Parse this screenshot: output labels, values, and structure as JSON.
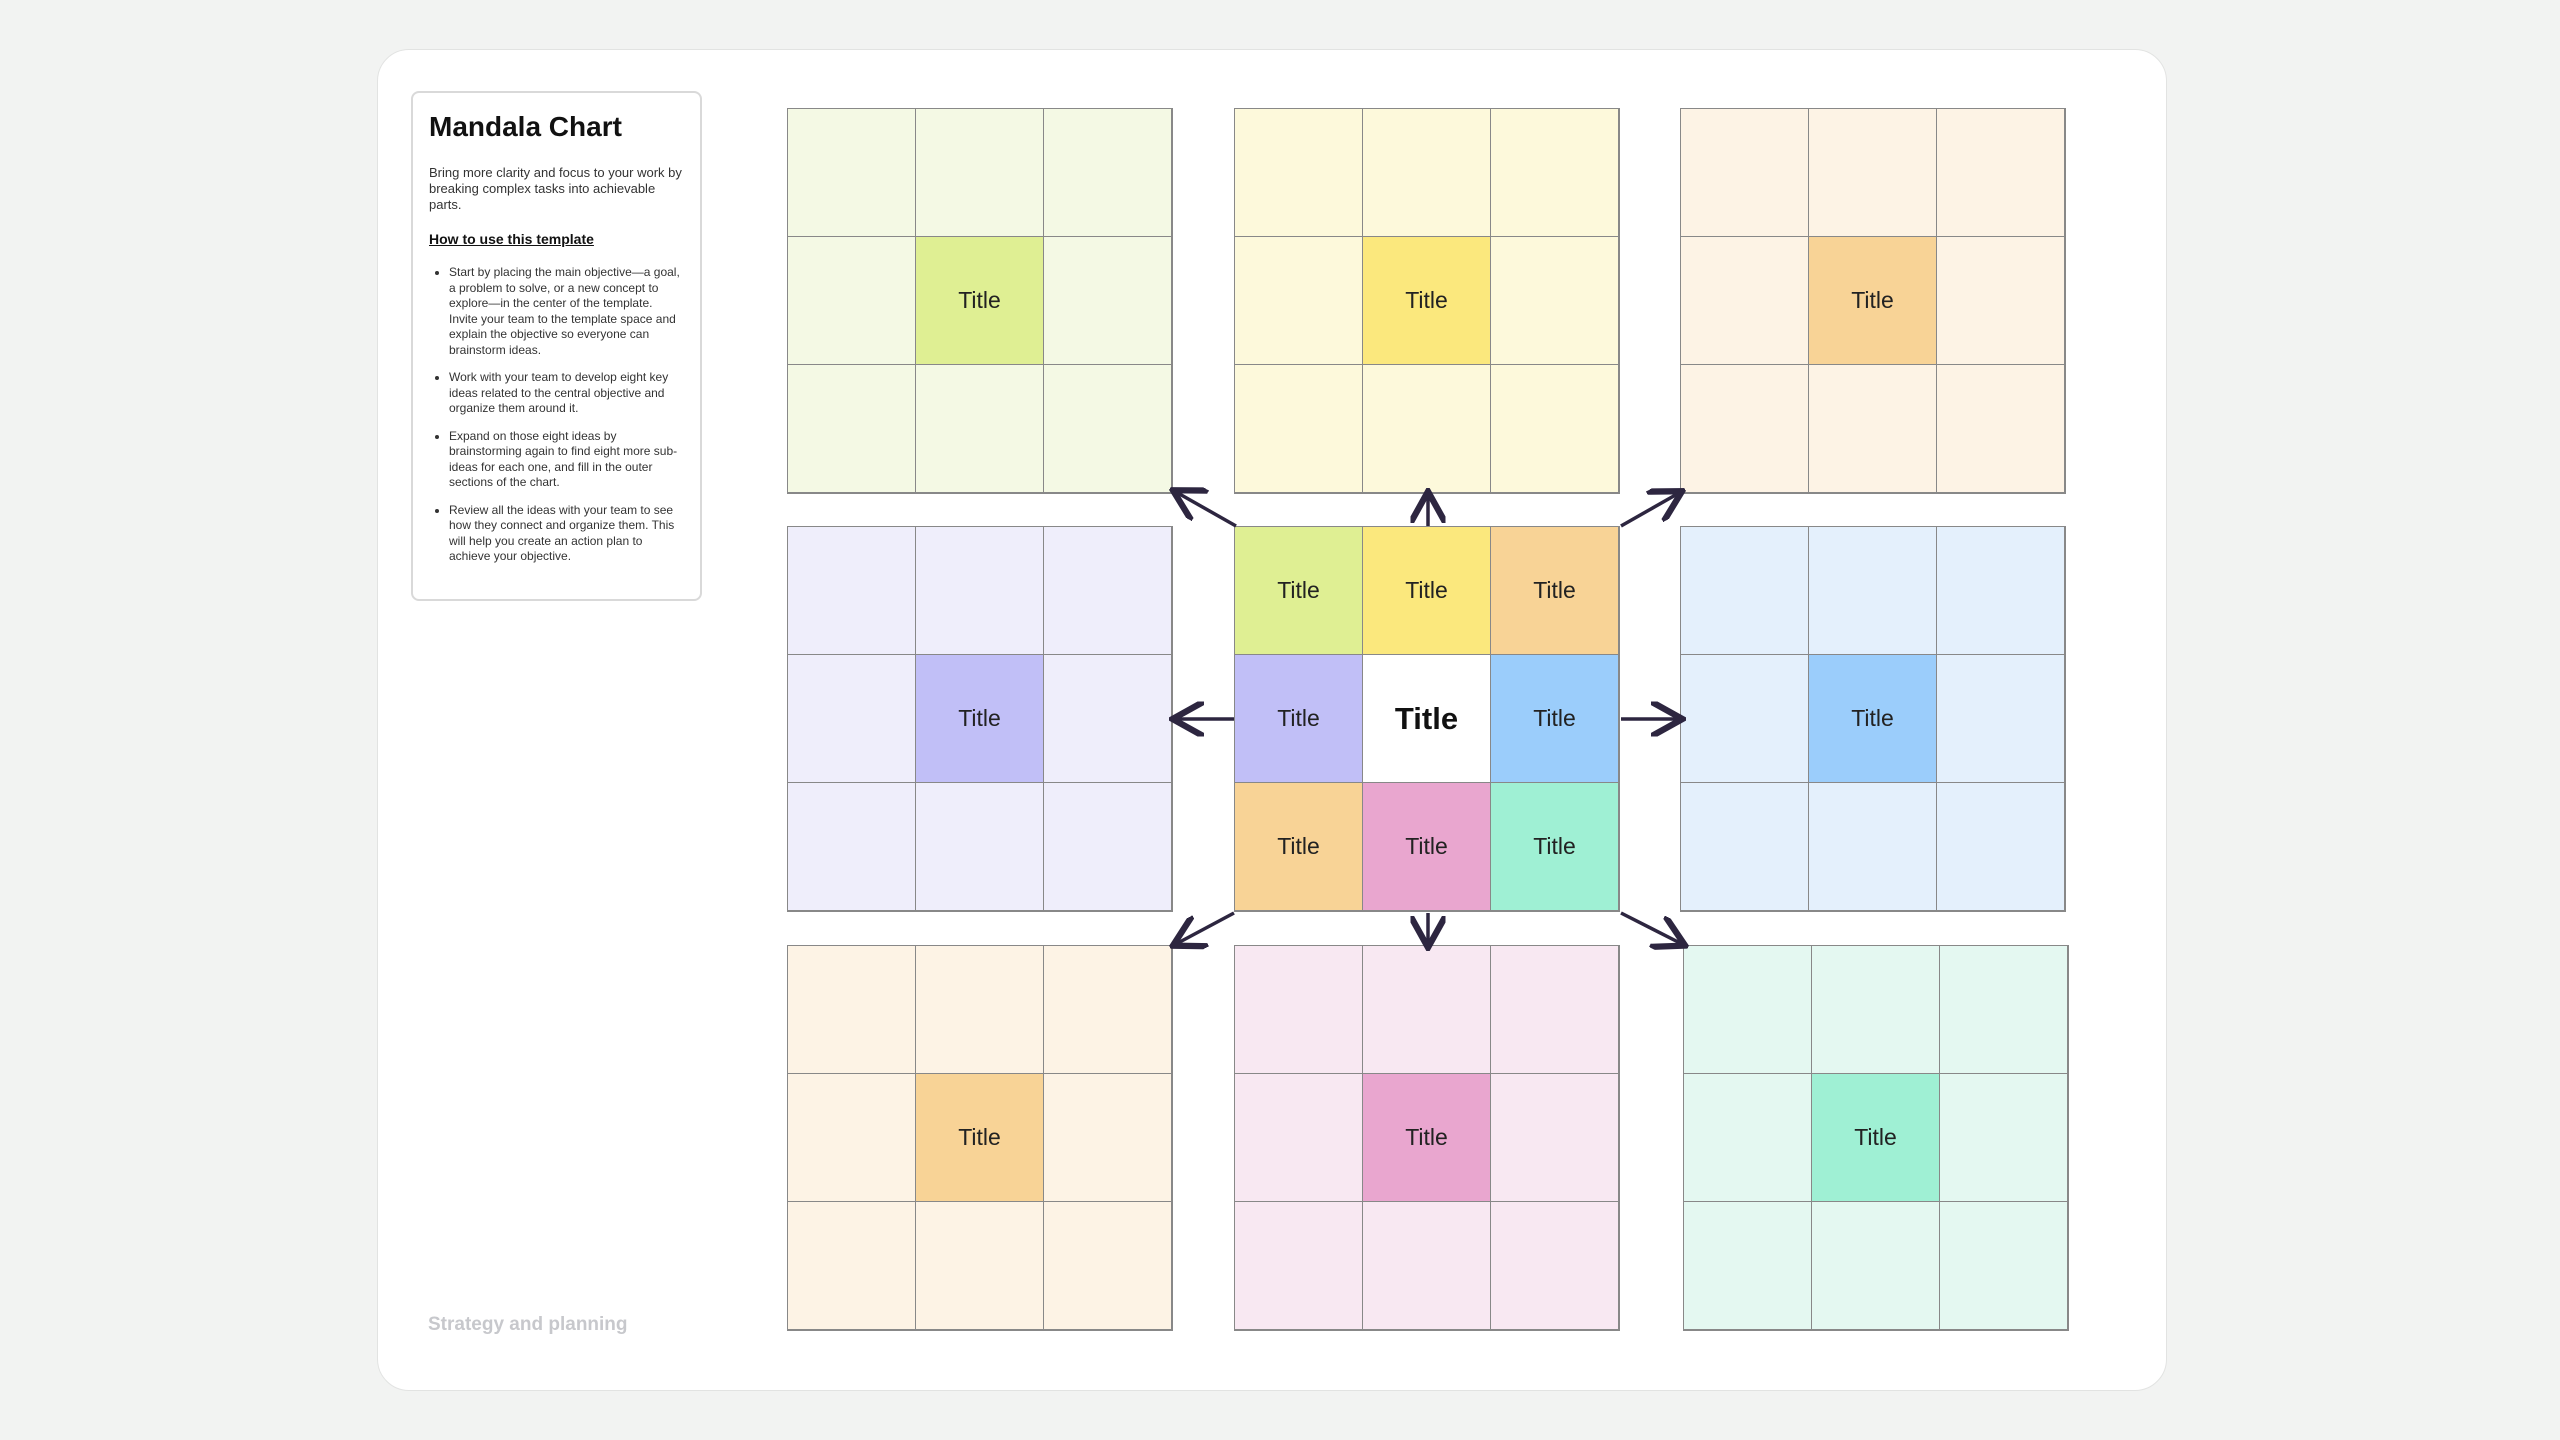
{
  "sidebar": {
    "title": "Mandala Chart",
    "description": "Bring more clarity and focus to your work by breaking complex tasks into achievable parts.",
    "howto_heading": "How to use this template",
    "steps": [
      "Start by placing the main objective—a goal, a problem to solve, or a new concept to explore—in the center of the template. Invite your team to the template space and explain the objective so everyone can brainstorm ideas.",
      "Work with your team to develop eight key ideas related to the central objective and organize them around it.",
      "Expand on those eight ideas by brainstorming again to find eight more sub-ideas for each one, and fill in the outer sections of the chart.",
      "Review all the ideas with your team to see how they connect and organize them. This will help you create an action plan to achieve your objective."
    ]
  },
  "footer": "Strategy and planning",
  "outer_blocks": [
    {
      "label": "Title"
    },
    {
      "label": "Title"
    },
    {
      "label": "Title"
    },
    {
      "label": "Title"
    },
    {
      "label": "Title"
    },
    {
      "label": "Title"
    },
    {
      "label": "Title"
    },
    {
      "label": "Title"
    }
  ],
  "center": {
    "label": "Title",
    "ideas": [
      "Title",
      "Title",
      "Title",
      "Title",
      "Title",
      "Title",
      "Title",
      "Title"
    ]
  }
}
